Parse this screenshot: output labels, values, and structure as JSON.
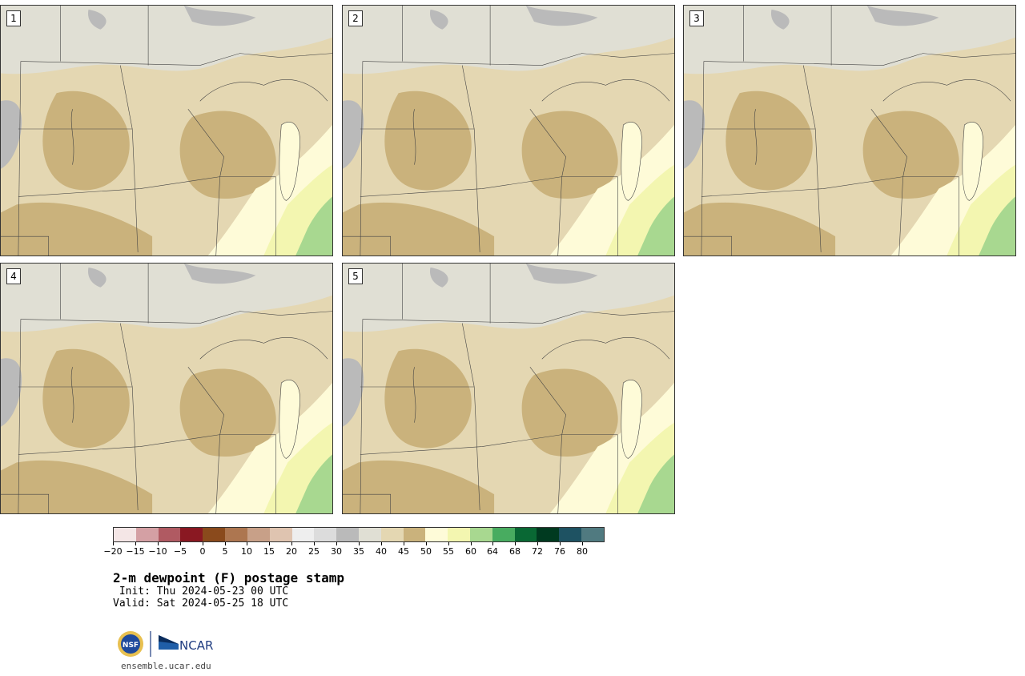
{
  "panels": [
    {
      "label": "1"
    },
    {
      "label": "2"
    },
    {
      "label": "3"
    },
    {
      "label": "4"
    },
    {
      "label": "5"
    }
  ],
  "colorbar": {
    "colors": [
      "#f4e6e6",
      "#d4a0a4",
      "#b05a62",
      "#8a1822",
      "#8a4a1c",
      "#ad7650",
      "#c8a088",
      "#dfc4b0",
      "#eeeeee",
      "#dcdcdc",
      "#bababa",
      "#e0dfd4",
      "#e4d7b2",
      "#cab27c",
      "#fefbd8",
      "#f3f6b0",
      "#a8d890",
      "#48ac60",
      "#096834",
      "#003a20",
      "#1e5262",
      "#507a80"
    ],
    "tick_labels": [
      "−20",
      "−15",
      "−10",
      "−5",
      "0",
      "5",
      "10",
      "15",
      "20",
      "25",
      "30",
      "35",
      "40",
      "45",
      "50",
      "55",
      "60",
      "64",
      "68",
      "72",
      "76",
      "80"
    ]
  },
  "text": {
    "title": "2-m dewpoint (F) postage stamp",
    "init": " Init: Thu 2024-05-23 00 UTC",
    "valid": "Valid: Sat 2024-05-25 18 UTC",
    "site": "ensemble.ucar.edu"
  },
  "logos": {
    "nsf": "NSF",
    "ncar": "NCAR"
  }
}
